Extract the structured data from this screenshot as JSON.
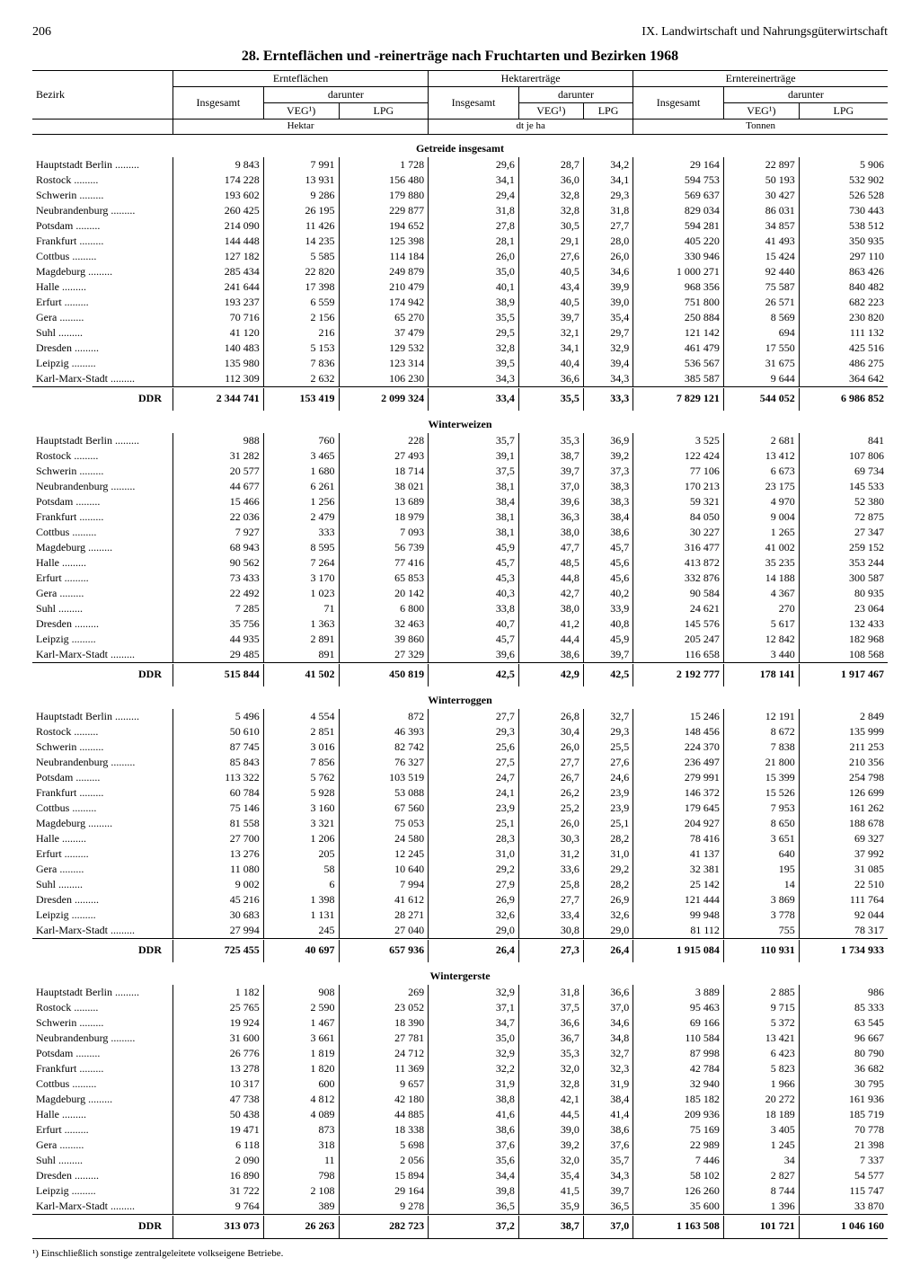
{
  "page_number": "206",
  "chapter": "IX. Landwirtschaft und Nahrungsgüterwirtschaft",
  "title": "28. Ernteflächen und -reinerträge nach Fruchtarten und Bezirken 1968",
  "header": {
    "bezirk": "Bezirk",
    "ernteflaechen": "Ernteflächen",
    "hektarertraege": "Hektarerträge",
    "erntereinertraege": "Erntereinerträge",
    "insgesamt": "Insgesamt",
    "darunter": "darunter",
    "veg": "VEG¹)",
    "lpg": "LPG",
    "hektar": "Hektar",
    "dt_je_ha": "dt je ha",
    "tonnen": "Tonnen"
  },
  "ddr_label": "DDR",
  "bezirke": [
    "Hauptstadt Berlin",
    "Rostock",
    "Schwerin",
    "Neubrandenburg",
    "Potsdam",
    "Frankfurt",
    "Cottbus",
    "Magdeburg",
    "Halle",
    "Erfurt",
    "Gera",
    "Suhl",
    "Dresden",
    "Leipzig",
    "Karl-Marx-Stadt"
  ],
  "sections": [
    {
      "name": "Getreide insgesamt",
      "rows": [
        [
          "9 843",
          "7 991",
          "1 728",
          "29,6",
          "28,7",
          "34,2",
          "29 164",
          "22 897",
          "5 906"
        ],
        [
          "174 228",
          "13 931",
          "156 480",
          "34,1",
          "36,0",
          "34,1",
          "594 753",
          "50 193",
          "532 902"
        ],
        [
          "193 602",
          "9 286",
          "179 880",
          "29,4",
          "32,8",
          "29,3",
          "569 637",
          "30 427",
          "526 528"
        ],
        [
          "260 425",
          "26 195",
          "229 877",
          "31,8",
          "32,8",
          "31,8",
          "829 034",
          "86 031",
          "730 443"
        ],
        [
          "214 090",
          "11 426",
          "194 652",
          "27,8",
          "30,5",
          "27,7",
          "594 281",
          "34 857",
          "538 512"
        ],
        [
          "144 448",
          "14 235",
          "125 398",
          "28,1",
          "29,1",
          "28,0",
          "405 220",
          "41 493",
          "350 935"
        ],
        [
          "127 182",
          "5 585",
          "114 184",
          "26,0",
          "27,6",
          "26,0",
          "330 946",
          "15 424",
          "297 110"
        ],
        [
          "285 434",
          "22 820",
          "249 879",
          "35,0",
          "40,5",
          "34,6",
          "1 000 271",
          "92 440",
          "863 426"
        ],
        [
          "241 644",
          "17 398",
          "210 479",
          "40,1",
          "43,4",
          "39,9",
          "968 356",
          "75 587",
          "840 482"
        ],
        [
          "193 237",
          "6 559",
          "174 942",
          "38,9",
          "40,5",
          "39,0",
          "751 800",
          "26 571",
          "682 223"
        ],
        [
          "70 716",
          "2 156",
          "65 270",
          "35,5",
          "39,7",
          "35,4",
          "250 884",
          "8 569",
          "230 820"
        ],
        [
          "41 120",
          "216",
          "37 479",
          "29,5",
          "32,1",
          "29,7",
          "121 142",
          "694",
          "111 132"
        ],
        [
          "140 483",
          "5 153",
          "129 532",
          "32,8",
          "34,1",
          "32,9",
          "461 479",
          "17 550",
          "425 516"
        ],
        [
          "135 980",
          "7 836",
          "123 314",
          "39,5",
          "40,4",
          "39,4",
          "536 567",
          "31 675",
          "486 275"
        ],
        [
          "112 309",
          "2 632",
          "106 230",
          "34,3",
          "36,6",
          "34,3",
          "385 587",
          "9 644",
          "364 642"
        ]
      ],
      "ddr": [
        "2 344 741",
        "153 419",
        "2 099 324",
        "33,4",
        "35,5",
        "33,3",
        "7 829 121",
        "544 052",
        "6 986 852"
      ]
    },
    {
      "name": "Winterweizen",
      "rows": [
        [
          "988",
          "760",
          "228",
          "35,7",
          "35,3",
          "36,9",
          "3 525",
          "2 681",
          "841"
        ],
        [
          "31 282",
          "3 465",
          "27 493",
          "39,1",
          "38,7",
          "39,2",
          "122 424",
          "13 412",
          "107 806"
        ],
        [
          "20 577",
          "1 680",
          "18 714",
          "37,5",
          "39,7",
          "37,3",
          "77 106",
          "6 673",
          "69 734"
        ],
        [
          "44 677",
          "6 261",
          "38 021",
          "38,1",
          "37,0",
          "38,3",
          "170 213",
          "23 175",
          "145 533"
        ],
        [
          "15 466",
          "1 256",
          "13 689",
          "38,4",
          "39,6",
          "38,3",
          "59 321",
          "4 970",
          "52 380"
        ],
        [
          "22 036",
          "2 479",
          "18 979",
          "38,1",
          "36,3",
          "38,4",
          "84 050",
          "9 004",
          "72 875"
        ],
        [
          "7 927",
          "333",
          "7 093",
          "38,1",
          "38,0",
          "38,6",
          "30 227",
          "1 265",
          "27 347"
        ],
        [
          "68 943",
          "8 595",
          "56 739",
          "45,9",
          "47,7",
          "45,7",
          "316 477",
          "41 002",
          "259 152"
        ],
        [
          "90 562",
          "7 264",
          "77 416",
          "45,7",
          "48,5",
          "45,6",
          "413 872",
          "35 235",
          "353 244"
        ],
        [
          "73 433",
          "3 170",
          "65 853",
          "45,3",
          "44,8",
          "45,6",
          "332 876",
          "14 188",
          "300 587"
        ],
        [
          "22 492",
          "1 023",
          "20 142",
          "40,3",
          "42,7",
          "40,2",
          "90 584",
          "4 367",
          "80 935"
        ],
        [
          "7 285",
          "71",
          "6 800",
          "33,8",
          "38,0",
          "33,9",
          "24 621",
          "270",
          "23 064"
        ],
        [
          "35 756",
          "1 363",
          "32 463",
          "40,7",
          "41,2",
          "40,8",
          "145 576",
          "5 617",
          "132 433"
        ],
        [
          "44 935",
          "2 891",
          "39 860",
          "45,7",
          "44,4",
          "45,9",
          "205 247",
          "12 842",
          "182 968"
        ],
        [
          "29 485",
          "891",
          "27 329",
          "39,6",
          "38,6",
          "39,7",
          "116 658",
          "3 440",
          "108 568"
        ]
      ],
      "ddr": [
        "515 844",
        "41 502",
        "450 819",
        "42,5",
        "42,9",
        "42,5",
        "2 192 777",
        "178 141",
        "1 917 467"
      ]
    },
    {
      "name": "Winterroggen",
      "rows": [
        [
          "5 496",
          "4 554",
          "872",
          "27,7",
          "26,8",
          "32,7",
          "15 246",
          "12 191",
          "2 849"
        ],
        [
          "50 610",
          "2 851",
          "46 393",
          "29,3",
          "30,4",
          "29,3",
          "148 456",
          "8 672",
          "135 999"
        ],
        [
          "87 745",
          "3 016",
          "82 742",
          "25,6",
          "26,0",
          "25,5",
          "224 370",
          "7 838",
          "211 253"
        ],
        [
          "85 843",
          "7 856",
          "76 327",
          "27,5",
          "27,7",
          "27,6",
          "236 497",
          "21 800",
          "210 356"
        ],
        [
          "113 322",
          "5 762",
          "103 519",
          "24,7",
          "26,7",
          "24,6",
          "279 991",
          "15 399",
          "254 798"
        ],
        [
          "60 784",
          "5 928",
          "53 088",
          "24,1",
          "26,2",
          "23,9",
          "146 372",
          "15 526",
          "126 699"
        ],
        [
          "75 146",
          "3 160",
          "67 560",
          "23,9",
          "25,2",
          "23,9",
          "179 645",
          "7 953",
          "161 262"
        ],
        [
          "81 558",
          "3 321",
          "75 053",
          "25,1",
          "26,0",
          "25,1",
          "204 927",
          "8 650",
          "188 678"
        ],
        [
          "27 700",
          "1 206",
          "24 580",
          "28,3",
          "30,3",
          "28,2",
          "78 416",
          "3 651",
          "69 327"
        ],
        [
          "13 276",
          "205",
          "12 245",
          "31,0",
          "31,2",
          "31,0",
          "41 137",
          "640",
          "37 992"
        ],
        [
          "11 080",
          "58",
          "10 640",
          "29,2",
          "33,6",
          "29,2",
          "32 381",
          "195",
          "31 085"
        ],
        [
          "9 002",
          "6",
          "7 994",
          "27,9",
          "25,8",
          "28,2",
          "25 142",
          "14",
          "22 510"
        ],
        [
          "45 216",
          "1 398",
          "41 612",
          "26,9",
          "27,7",
          "26,9",
          "121 444",
          "3 869",
          "111 764"
        ],
        [
          "30 683",
          "1 131",
          "28 271",
          "32,6",
          "33,4",
          "32,6",
          "99 948",
          "3 778",
          "92 044"
        ],
        [
          "27 994",
          "245",
          "27 040",
          "29,0",
          "30,8",
          "29,0",
          "81 112",
          "755",
          "78 317"
        ]
      ],
      "ddr": [
        "725 455",
        "40 697",
        "657 936",
        "26,4",
        "27,3",
        "26,4",
        "1 915 084",
        "110 931",
        "1 734 933"
      ]
    },
    {
      "name": "Wintergerste",
      "rows": [
        [
          "1 182",
          "908",
          "269",
          "32,9",
          "31,8",
          "36,6",
          "3 889",
          "2 885",
          "986"
        ],
        [
          "25 765",
          "2 590",
          "23 052",
          "37,1",
          "37,5",
          "37,0",
          "95 463",
          "9 715",
          "85 333"
        ],
        [
          "19 924",
          "1 467",
          "18 390",
          "34,7",
          "36,6",
          "34,6",
          "69 166",
          "5 372",
          "63 545"
        ],
        [
          "31 600",
          "3 661",
          "27 781",
          "35,0",
          "36,7",
          "34,8",
          "110 584",
          "13 421",
          "96 667"
        ],
        [
          "26 776",
          "1 819",
          "24 712",
          "32,9",
          "35,3",
          "32,7",
          "87 998",
          "6 423",
          "80 790"
        ],
        [
          "13 278",
          "1 820",
          "11 369",
          "32,2",
          "32,0",
          "32,3",
          "42 784",
          "5 823",
          "36 682"
        ],
        [
          "10 317",
          "600",
          "9 657",
          "31,9",
          "32,8",
          "31,9",
          "32 940",
          "1 966",
          "30 795"
        ],
        [
          "47 738",
          "4 812",
          "42 180",
          "38,8",
          "42,1",
          "38,4",
          "185 182",
          "20 272",
          "161 936"
        ],
        [
          "50 438",
          "4 089",
          "44 885",
          "41,6",
          "44,5",
          "41,4",
          "209 936",
          "18 189",
          "185 719"
        ],
        [
          "19 471",
          "873",
          "18 338",
          "38,6",
          "39,0",
          "38,6",
          "75 169",
          "3 405",
          "70 778"
        ],
        [
          "6 118",
          "318",
          "5 698",
          "37,6",
          "39,2",
          "37,6",
          "22 989",
          "1 245",
          "21 398"
        ],
        [
          "2 090",
          "11",
          "2 056",
          "35,6",
          "32,0",
          "35,7",
          "7 446",
          "34",
          "7 337"
        ],
        [
          "16 890",
          "798",
          "15 894",
          "34,4",
          "35,4",
          "34,3",
          "58 102",
          "2 827",
          "54 577"
        ],
        [
          "31 722",
          "2 108",
          "29 164",
          "39,8",
          "41,5",
          "39,7",
          "126 260",
          "8 744",
          "115 747"
        ],
        [
          "9 764",
          "389",
          "9 278",
          "36,5",
          "35,9",
          "36,5",
          "35 600",
          "1 396",
          "33 870"
        ]
      ],
      "ddr": [
        "313 073",
        "26 263",
        "282 723",
        "37,2",
        "38,7",
        "37,0",
        "1 163 508",
        "101 721",
        "1 046 160"
      ]
    }
  ],
  "footnote": "¹) Einschließlich sonstige zentralgeleitete volkseigene Betriebe."
}
